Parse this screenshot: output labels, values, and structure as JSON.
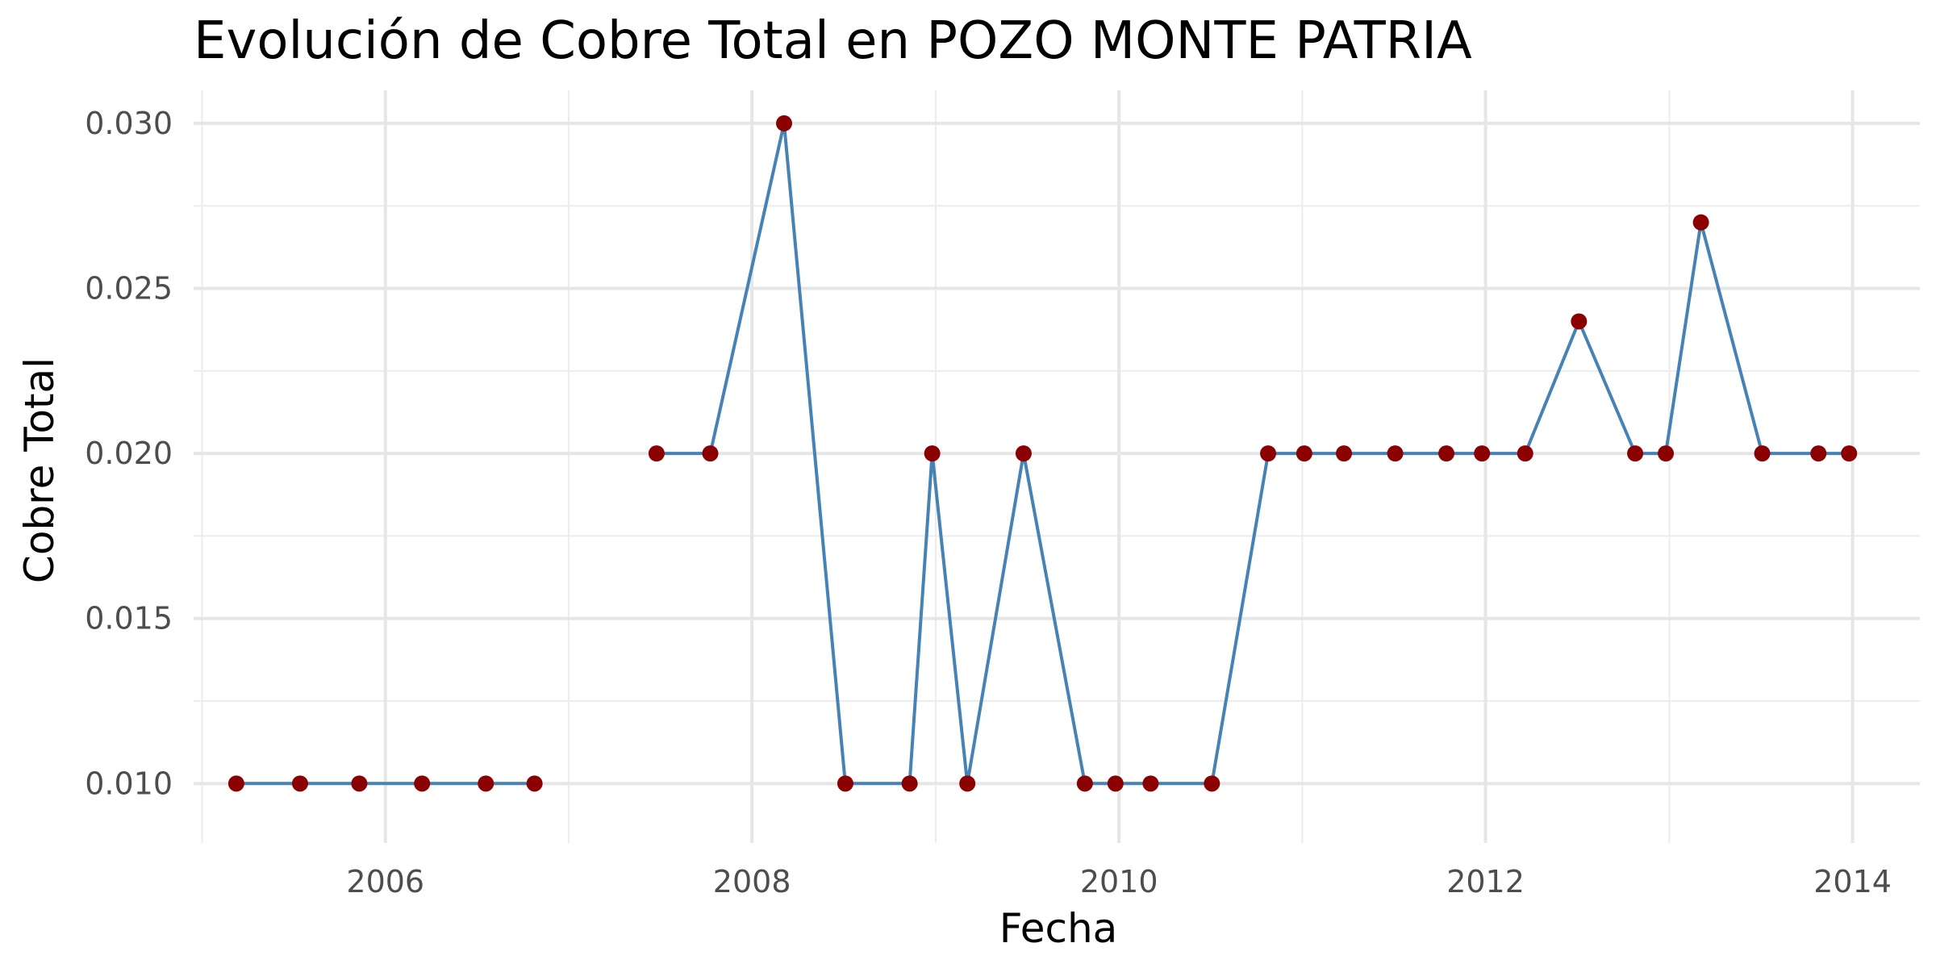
{
  "chart_data": {
    "type": "line",
    "title": "Evolución de Cobre Total en POZO MONTE PATRIA",
    "xlabel": "Fecha",
    "ylabel": "Cobre Total",
    "x_range": [
      "2004-12-15",
      "2014-05-15"
    ],
    "ylim": [
      0.0082,
      0.031
    ],
    "x_ticks": [
      {
        "date": "2006-01-01",
        "label": "2006"
      },
      {
        "date": "2008-01-01",
        "label": "2008"
      },
      {
        "date": "2010-01-01",
        "label": "2010"
      },
      {
        "date": "2012-01-01",
        "label": "2012"
      },
      {
        "date": "2014-01-01",
        "label": "2014"
      }
    ],
    "x_minor_ticks": [
      "2005-01-01",
      "2007-01-01",
      "2009-01-01",
      "2011-01-01",
      "2013-01-01"
    ],
    "y_ticks": [
      {
        "value": 0.01,
        "label": "0.010"
      },
      {
        "value": 0.015,
        "label": "0.015"
      },
      {
        "value": 0.02,
        "label": "0.020"
      },
      {
        "value": 0.025,
        "label": "0.025"
      },
      {
        "value": 0.03,
        "label": "0.030"
      }
    ],
    "y_minor_ticks": [
      0.0125,
      0.0175,
      0.0225,
      0.0275
    ],
    "grid": true,
    "line_color": "#4682b4",
    "point_color": "#8b0000",
    "series": [
      {
        "segments": [
          [
            {
              "x": "2005-03-10",
              "y": 0.01
            },
            {
              "x": "2005-07-15",
              "y": 0.01
            },
            {
              "x": "2005-11-10",
              "y": 0.01
            },
            {
              "x": "2006-03-15",
              "y": 0.01
            },
            {
              "x": "2006-07-20",
              "y": 0.01
            },
            {
              "x": "2006-10-25",
              "y": 0.01
            }
          ],
          [
            {
              "x": "2007-06-25",
              "y": 0.02
            },
            {
              "x": "2007-10-10",
              "y": 0.02
            },
            {
              "x": "2008-03-05",
              "y": 0.03
            },
            {
              "x": "2008-07-05",
              "y": 0.01
            },
            {
              "x": "2008-11-10",
              "y": 0.01
            },
            {
              "x": "2008-12-25",
              "y": 0.02
            },
            {
              "x": "2009-03-05",
              "y": 0.01
            },
            {
              "x": "2009-06-25",
              "y": 0.02
            },
            {
              "x": "2009-10-25",
              "y": 0.01
            },
            {
              "x": "2009-12-25",
              "y": 0.01
            },
            {
              "x": "2010-03-05",
              "y": 0.01
            },
            {
              "x": "2010-07-05",
              "y": 0.01
            },
            {
              "x": "2010-10-25",
              "y": 0.02
            },
            {
              "x": "2011-01-05",
              "y": 0.02
            },
            {
              "x": "2011-03-25",
              "y": 0.02
            },
            {
              "x": "2011-07-05",
              "y": 0.02
            },
            {
              "x": "2011-10-15",
              "y": 0.02
            },
            {
              "x": "2011-12-25",
              "y": 0.02
            },
            {
              "x": "2012-03-20",
              "y": 0.02
            },
            {
              "x": "2012-07-05",
              "y": 0.024
            },
            {
              "x": "2012-10-25",
              "y": 0.02
            },
            {
              "x": "2012-12-25",
              "y": 0.02
            },
            {
              "x": "2013-03-05",
              "y": 0.027
            },
            {
              "x": "2013-07-05",
              "y": 0.02
            },
            {
              "x": "2013-10-25",
              "y": 0.02
            },
            {
              "x": "2013-12-25",
              "y": 0.02
            }
          ]
        ]
      }
    ]
  }
}
